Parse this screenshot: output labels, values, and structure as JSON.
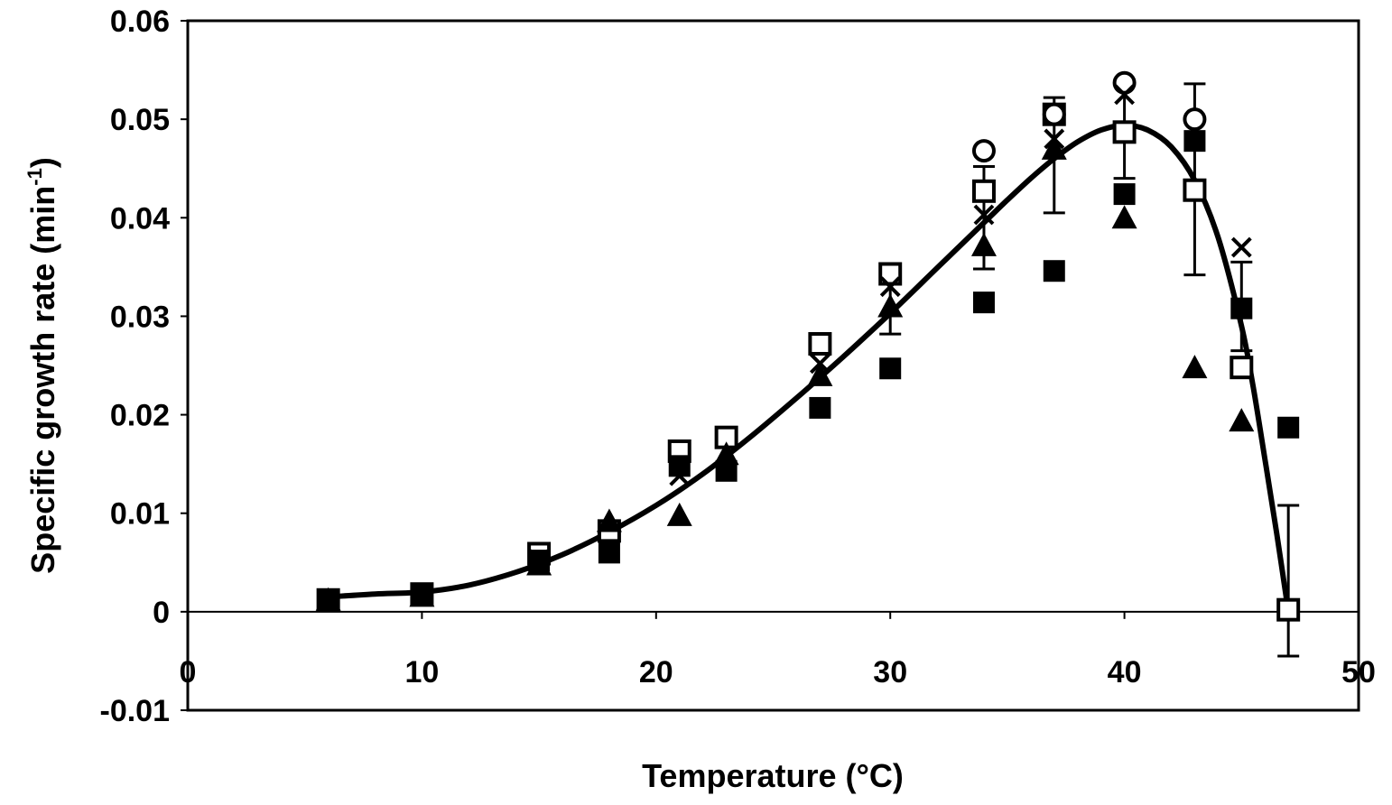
{
  "chart_data": {
    "type": "scatter",
    "title": "",
    "xlabel": "Temperature (°C)",
    "ylabel": "Specific growth rate (min",
    "ylabel_superscript": "-1",
    "ylabel_suffix": ")",
    "xlim": [
      0,
      50
    ],
    "ylim": [
      -0.01,
      0.06
    ],
    "xticks": [
      0,
      10,
      20,
      30,
      40,
      50
    ],
    "xtick_labels": [
      "0",
      "10",
      "20",
      "30",
      "40",
      "50"
    ],
    "yticks": [
      -0.01,
      0,
      0.01,
      0.02,
      0.03,
      0.04,
      0.05,
      0.06
    ],
    "ytick_labels": [
      "-0.01",
      "0",
      "0.01",
      "0.02",
      "0.03",
      "0.04",
      "0.05",
      "0.06"
    ],
    "grid": false,
    "series": [
      {
        "name": "open square",
        "marker": "square-open",
        "x": [
          6,
          10,
          15,
          18,
          21,
          23,
          27,
          30,
          34,
          37,
          40,
          43,
          45,
          47
        ],
        "y": [
          0.0012,
          0.0018,
          0.0059,
          0.0082,
          0.0163,
          0.0177,
          0.0272,
          0.0343,
          0.0427,
          0.0505,
          0.0487,
          0.0428,
          0.0248,
          0.0002
        ]
      },
      {
        "name": "filled square",
        "marker": "square-filled",
        "x": [
          6,
          10,
          15,
          18,
          21,
          23,
          27,
          30,
          34,
          37,
          40,
          43,
          45,
          47
        ],
        "y": [
          0.0012,
          0.0018,
          0.0052,
          0.006,
          0.0148,
          0.0143,
          0.0207,
          0.0247,
          0.0314,
          0.0346,
          0.0424,
          0.0478,
          0.0308,
          0.0187
        ]
      },
      {
        "name": "filled triangle",
        "marker": "triangle-filled",
        "x": [
          6,
          10,
          15,
          18,
          21,
          23,
          27,
          30,
          34,
          37,
          40,
          43,
          45
        ],
        "y": [
          0.0012,
          0.0016,
          0.0048,
          0.0092,
          0.0098,
          0.016,
          0.024,
          0.031,
          0.0372,
          0.047,
          0.04,
          0.0248,
          0.0194
        ]
      },
      {
        "name": "open circle",
        "marker": "circle-open",
        "x": [
          34,
          37,
          40,
          43
        ],
        "y": [
          0.0468,
          0.0505,
          0.0537,
          0.05
        ]
      },
      {
        "name": "cross",
        "marker": "x",
        "x": [
          6,
          10,
          15,
          21,
          27,
          30,
          34,
          37,
          40,
          45
        ],
        "y": [
          0.0012,
          0.0017,
          0.0053,
          0.0138,
          0.0252,
          0.033,
          0.0403,
          0.048,
          0.0525,
          0.037
        ]
      }
    ],
    "error_bars": [
      {
        "x": 34,
        "y": 0.0398,
        "low": 0.0348,
        "high": 0.0452
      },
      {
        "x": 37,
        "y": 0.048,
        "low": 0.0405,
        "high": 0.0522
      },
      {
        "x": 40,
        "y": 0.049,
        "low": 0.044,
        "high": 0.0535
      },
      {
        "x": 43,
        "y": 0.0438,
        "low": 0.0342,
        "high": 0.0536
      },
      {
        "x": 30,
        "y": 0.031,
        "low": 0.0282,
        "high": 0.034
      },
      {
        "x": 45,
        "y": 0.031,
        "low": 0.0265,
        "high": 0.0355
      },
      {
        "x": 47,
        "y": 0.0032,
        "low": -0.0045,
        "high": 0.0108
      }
    ],
    "fit_curve": {
      "name": "model fit",
      "x": [
        6,
        8,
        10,
        12,
        14,
        16,
        18,
        20,
        22,
        24,
        26,
        28,
        30,
        32,
        34,
        35,
        36,
        37,
        38,
        39,
        40,
        41,
        42,
        43,
        44,
        45,
        45.5,
        46,
        46.5,
        47
      ],
      "y": [
        0.0015,
        0.0018,
        0.002,
        0.0027,
        0.004,
        0.0058,
        0.0081,
        0.0108,
        0.014,
        0.0177,
        0.0217,
        0.0259,
        0.0303,
        0.0349,
        0.0395,
        0.0418,
        0.044,
        0.046,
        0.0477,
        0.0489,
        0.0494,
        0.0489,
        0.0472,
        0.0438,
        0.038,
        0.029,
        0.0228,
        0.0155,
        0.008,
        0.0
      ]
    }
  }
}
